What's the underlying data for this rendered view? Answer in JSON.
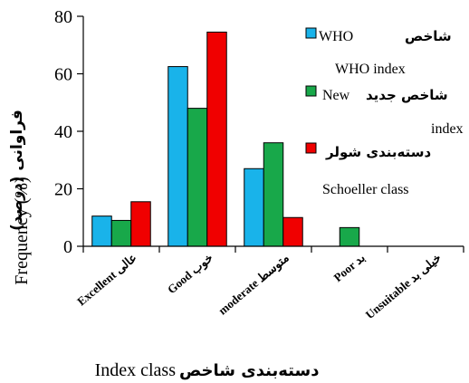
{
  "chart_data": {
    "type": "bar",
    "categories": [
      {
        "fa": "عالی",
        "en": "Excellent"
      },
      {
        "fa": "خوب",
        "en": "Good"
      },
      {
        "fa": "متوسط",
        "en": "moderate"
      },
      {
        "fa": "بد",
        "en": "Poor"
      },
      {
        "fa": "خیلی بد",
        "en": "Unsuitable"
      }
    ],
    "series": [
      {
        "name_fa": "شاخص",
        "name_en_inline": "WHO",
        "name_en": "WHO index",
        "color": "#19B3EA",
        "values": [
          10.5,
          62.5,
          27,
          0,
          0
        ]
      },
      {
        "name_fa": "شاخص جدید",
        "name_en_inline": "New",
        "name_en": "index",
        "color": "#18A84A",
        "values": [
          9,
          48,
          36,
          6.5,
          0
        ]
      },
      {
        "name_fa": "دسته‌بندی شولر",
        "name_en_inline": "",
        "name_en": "Schoeller class",
        "color": "#F00000",
        "values": [
          15.5,
          74.5,
          10,
          0,
          0
        ]
      }
    ],
    "y_ticks": [
      "0",
      "20",
      "40",
      "60",
      "80"
    ],
    "ylim": [
      0,
      80
    ],
    "ylabel_fa": "فراوانی (درصد)",
    "ylabel_en": "Frequency (%)",
    "xlabel_fa": "دسته‌بندی شاخص",
    "xlabel_en": "Index class",
    "legend_position": "top-right",
    "grid": false
  }
}
